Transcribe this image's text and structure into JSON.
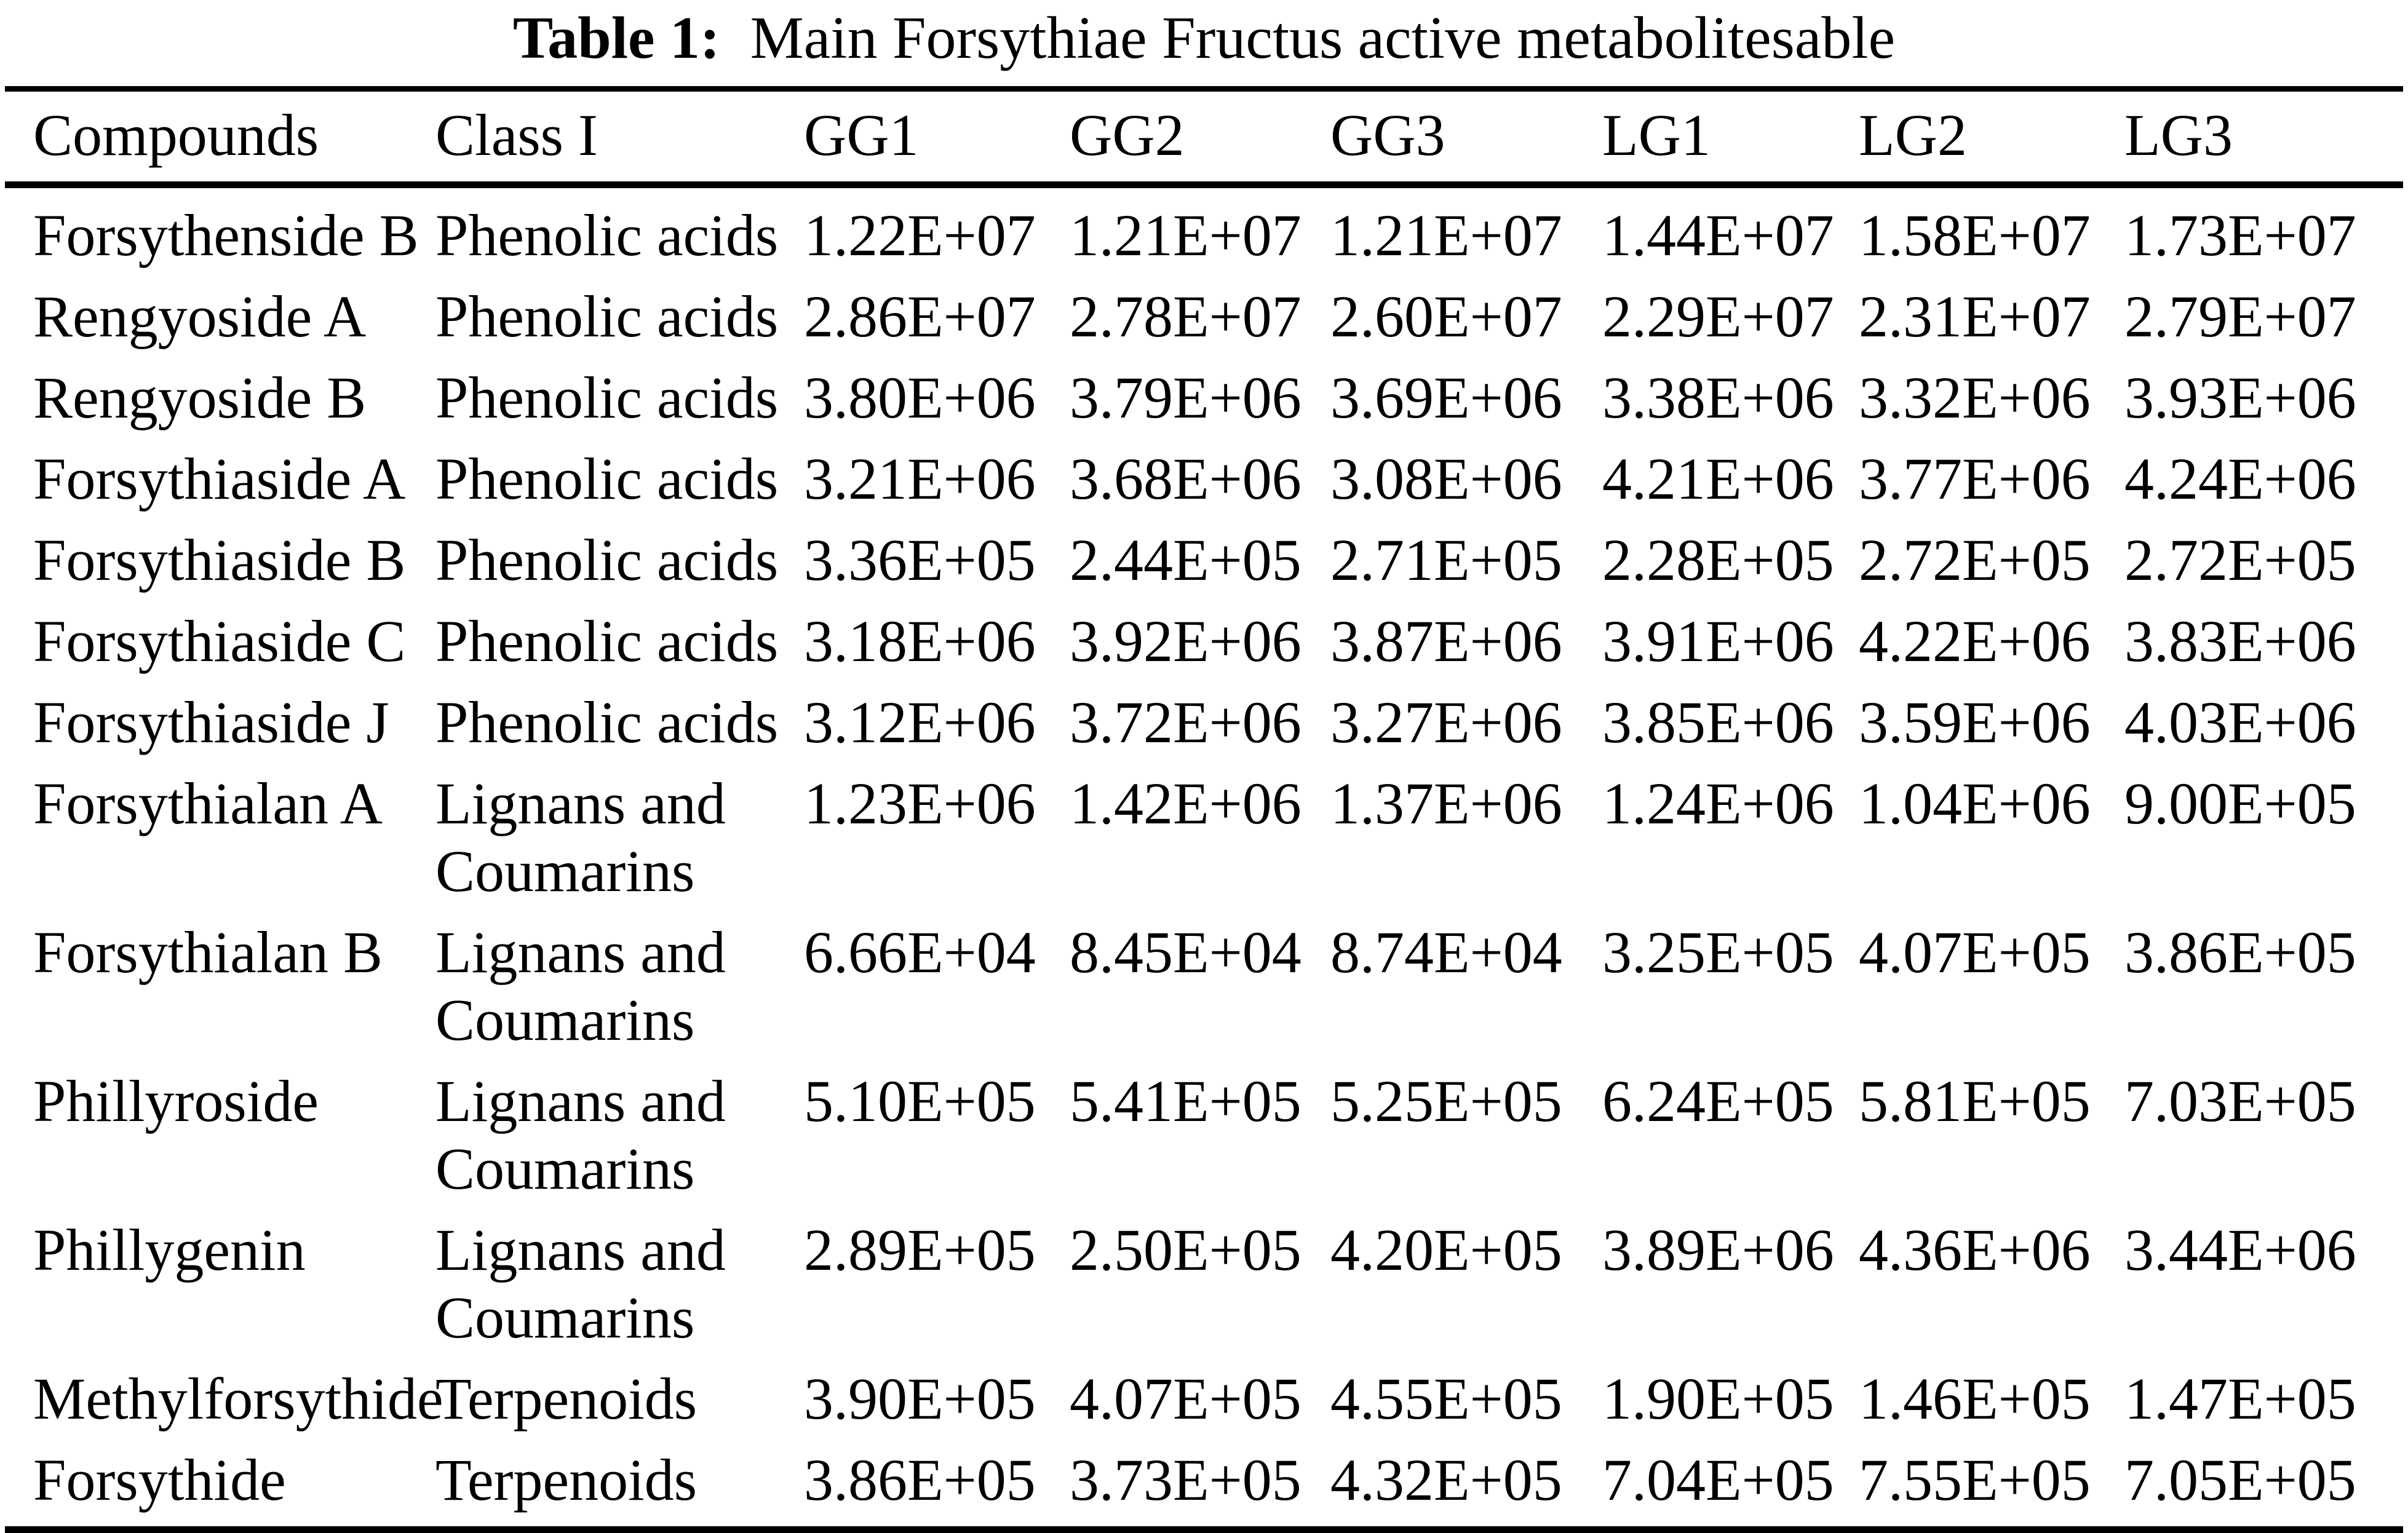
{
  "page": {
    "caption": {
      "label": "Table 1:",
      "text": "Main Forsythiae Fructus active metabolitesable"
    }
  },
  "table": {
    "columns": [
      "Compounds",
      "Class I",
      "GG1",
      "GG2",
      "GG3",
      "LG1",
      "LG2",
      "LG3"
    ],
    "rows": [
      {
        "compound": "Forsythenside B",
        "class_i": "Phenolic acids",
        "values": [
          "1.22E+07",
          "1.21E+07",
          "1.21E+07",
          "1.44E+07",
          "1.58E+07",
          "1.73E+07"
        ]
      },
      {
        "compound": "Rengyoside A",
        "class_i": "Phenolic acids",
        "values": [
          "2.86E+07",
          "2.78E+07",
          "2.60E+07",
          "2.29E+07",
          "2.31E+07",
          "2.79E+07"
        ]
      },
      {
        "compound": "Rengyoside B",
        "class_i": "Phenolic acids",
        "values": [
          "3.80E+06",
          "3.79E+06",
          "3.69E+06",
          "3.38E+06",
          "3.32E+06",
          "3.93E+06"
        ]
      },
      {
        "compound": "Forsythiaside A",
        "class_i": "Phenolic acids",
        "values": [
          "3.21E+06",
          "3.68E+06",
          "3.08E+06",
          "4.21E+06",
          "3.77E+06",
          "4.24E+06"
        ]
      },
      {
        "compound": "Forsythiaside B",
        "class_i": "Phenolic acids",
        "values": [
          "3.36E+05",
          "2.44E+05",
          "2.71E+05",
          "2.28E+05",
          "2.72E+05",
          "2.72E+05"
        ]
      },
      {
        "compound": "Forsythiaside C",
        "class_i": "Phenolic acids",
        "values": [
          "3.18E+06",
          "3.92E+06",
          "3.87E+06",
          "3.91E+06",
          "4.22E+06",
          "3.83E+06"
        ]
      },
      {
        "compound": "Forsythiaside J",
        "class_i": "Phenolic acids",
        "values": [
          "3.12E+06",
          "3.72E+06",
          "3.27E+06",
          "3.85E+06",
          "3.59E+06",
          "4.03E+06"
        ]
      },
      {
        "compound": "Forsythialan A",
        "class_i": "Lignans and Coumarins",
        "values": [
          "1.23E+06",
          "1.42E+06",
          "1.37E+06",
          "1.24E+06",
          "1.04E+06",
          "9.00E+05"
        ]
      },
      {
        "compound": "Forsythialan B",
        "class_i": "Lignans and Coumarins",
        "values": [
          "6.66E+04",
          "8.45E+04",
          "8.74E+04",
          "3.25E+05",
          "4.07E+05",
          "3.86E+05"
        ]
      },
      {
        "compound": "Phillyroside",
        "class_i": "Lignans and Coumarins",
        "values": [
          "5.10E+05",
          "5.41E+05",
          "5.25E+05",
          "6.24E+05",
          "5.81E+05",
          "7.03E+05"
        ]
      },
      {
        "compound": "Phillygenin",
        "class_i": "Lignans and Coumarins",
        "values": [
          "2.89E+05",
          "2.50E+05",
          "4.20E+05",
          "3.89E+06",
          "4.36E+06",
          "3.44E+06"
        ]
      },
      {
        "compound": "Methylforsythide",
        "class_i": "Terpenoids",
        "values": [
          "3.90E+05",
          "4.07E+05",
          "4.55E+05",
          "1.90E+05",
          "1.46E+05",
          "1.47E+05"
        ]
      },
      {
        "compound": "Forsythide",
        "class_i": "Terpenoids",
        "values": [
          "3.86E+05",
          "3.73E+05",
          "4.32E+05",
          "7.04E+05",
          "7.55E+05",
          "7.05E+05"
        ]
      }
    ]
  }
}
